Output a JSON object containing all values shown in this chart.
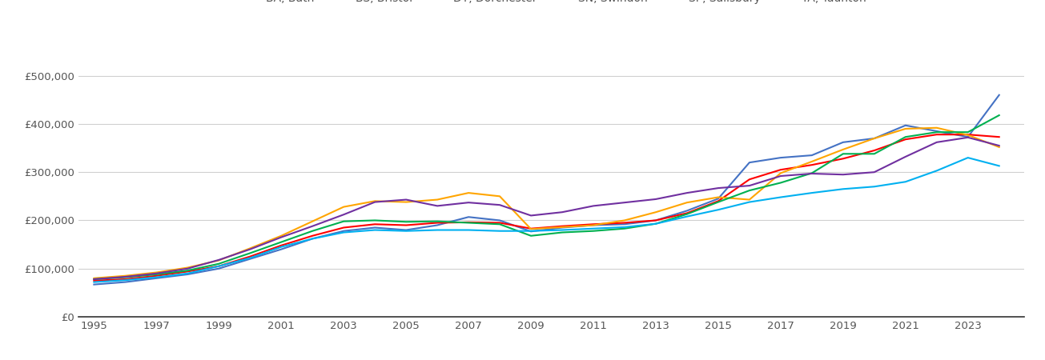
{
  "series": {
    "BA, Bath": {
      "color": "#4472C4",
      "years": [
        1995,
        1996,
        1997,
        1998,
        1999,
        2000,
        2001,
        2002,
        2003,
        2004,
        2005,
        2006,
        2007,
        2008,
        2009,
        2010,
        2011,
        2012,
        2013,
        2014,
        2015,
        2016,
        2017,
        2018,
        2019,
        2020,
        2021,
        2022,
        2023,
        2024
      ],
      "values": [
        67000,
        72000,
        80000,
        88000,
        100000,
        120000,
        140000,
        162000,
        178000,
        185000,
        180000,
        190000,
        207000,
        200000,
        177000,
        185000,
        190000,
        192000,
        200000,
        220000,
        245000,
        320000,
        330000,
        335000,
        362000,
        370000,
        397000,
        385000,
        373000,
        460000
      ]
    },
    "BS, Bristol": {
      "color": "#FF0000",
      "years": [
        1995,
        1996,
        1997,
        1998,
        1999,
        2000,
        2001,
        2002,
        2003,
        2004,
        2005,
        2006,
        2007,
        2008,
        2009,
        2010,
        2011,
        2012,
        2013,
        2014,
        2015,
        2016,
        2017,
        2018,
        2019,
        2020,
        2021,
        2022,
        2023,
        2024
      ],
      "values": [
        75000,
        78000,
        85000,
        94000,
        105000,
        125000,
        148000,
        168000,
        185000,
        192000,
        190000,
        195000,
        196000,
        195000,
        183000,
        188000,
        192000,
        195000,
        200000,
        215000,
        240000,
        285000,
        305000,
        315000,
        328000,
        345000,
        368000,
        378000,
        378000,
        373000
      ]
    },
    "DT, Dorchester": {
      "color": "#FFA500",
      "years": [
        1995,
        1996,
        1997,
        1998,
        1999,
        2000,
        2001,
        2002,
        2003,
        2004,
        2005,
        2006,
        2007,
        2008,
        2009,
        2010,
        2011,
        2012,
        2013,
        2014,
        2015,
        2016,
        2017,
        2018,
        2019,
        2020,
        2021,
        2022,
        2023,
        2024
      ],
      "values": [
        80000,
        85000,
        92000,
        102000,
        117000,
        142000,
        168000,
        198000,
        228000,
        240000,
        238000,
        243000,
        257000,
        250000,
        182000,
        186000,
        190000,
        200000,
        217000,
        237000,
        248000,
        243000,
        298000,
        322000,
        347000,
        370000,
        390000,
        392000,
        377000,
        352000
      ]
    },
    "SN, Swindon": {
      "color": "#00B050",
      "years": [
        1995,
        1996,
        1997,
        1998,
        1999,
        2000,
        2001,
        2002,
        2003,
        2004,
        2005,
        2006,
        2007,
        2008,
        2009,
        2010,
        2011,
        2012,
        2013,
        2014,
        2015,
        2016,
        2017,
        2018,
        2019,
        2020,
        2021,
        2022,
        2023,
        2024
      ],
      "values": [
        78000,
        82000,
        88000,
        96000,
        110000,
        132000,
        155000,
        178000,
        198000,
        200000,
        197000,
        198000,
        195000,
        192000,
        168000,
        175000,
        178000,
        183000,
        193000,
        213000,
        238000,
        262000,
        278000,
        298000,
        338000,
        338000,
        373000,
        383000,
        383000,
        418000
      ]
    },
    "SP, Salisbury": {
      "color": "#7030A0",
      "years": [
        1995,
        1996,
        1997,
        1998,
        1999,
        2000,
        2001,
        2002,
        2003,
        2004,
        2005,
        2006,
        2007,
        2008,
        2009,
        2010,
        2011,
        2012,
        2013,
        2014,
        2015,
        2016,
        2017,
        2018,
        2019,
        2020,
        2021,
        2022,
        2023,
        2024
      ],
      "values": [
        78000,
        83000,
        90000,
        100000,
        118000,
        140000,
        165000,
        188000,
        212000,
        238000,
        243000,
        230000,
        237000,
        232000,
        210000,
        217000,
        230000,
        237000,
        244000,
        257000,
        267000,
        272000,
        292000,
        297000,
        295000,
        300000,
        332000,
        362000,
        372000,
        355000
      ]
    },
    "TA, Taunton": {
      "color": "#00B0F0",
      "years": [
        1995,
        1996,
        1997,
        1998,
        1999,
        2000,
        2001,
        2002,
        2003,
        2004,
        2005,
        2006,
        2007,
        2008,
        2009,
        2010,
        2011,
        2012,
        2013,
        2014,
        2015,
        2016,
        2017,
        2018,
        2019,
        2020,
        2021,
        2022,
        2023,
        2024
      ],
      "values": [
        72000,
        76000,
        82000,
        90000,
        105000,
        122000,
        145000,
        162000,
        175000,
        180000,
        178000,
        180000,
        180000,
        178000,
        178000,
        180000,
        183000,
        186000,
        193000,
        208000,
        222000,
        238000,
        248000,
        257000,
        265000,
        270000,
        280000,
        303000,
        330000,
        313000
      ]
    }
  },
  "ylim": [
    0,
    560000
  ],
  "yticks": [
    0,
    100000,
    200000,
    300000,
    400000,
    500000
  ],
  "xlim": [
    1994.5,
    2024.8
  ],
  "xticks": [
    1995,
    1997,
    1999,
    2001,
    2003,
    2005,
    2007,
    2009,
    2011,
    2013,
    2015,
    2017,
    2019,
    2021,
    2023
  ],
  "background_color": "#ffffff",
  "grid_color": "#d0d0d0",
  "legend_ncol": 6,
  "tick_color": "#555555",
  "tick_fontsize": 9.5
}
